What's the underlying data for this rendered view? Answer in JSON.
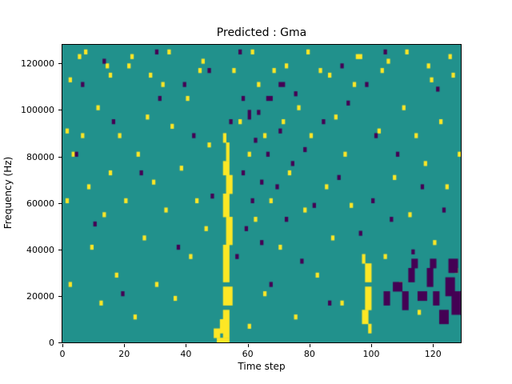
{
  "figure": {
    "title": "Predicted : Gma",
    "xlabel": "Time step",
    "ylabel": "Frequency (Hz)"
  },
  "chart_data": {
    "type": "heatmap",
    "title": "Predicted : Gma",
    "xlabel": "Time step",
    "ylabel": "Frequency (Hz)",
    "xlim": [
      0,
      129
    ],
    "ylim": [
      0,
      128000
    ],
    "x_ticks": [
      0,
      20,
      40,
      60,
      80,
      100,
      120
    ],
    "y_ticks": [
      0,
      20000,
      40000,
      60000,
      80000,
      100000,
      120000
    ],
    "grid": false,
    "legend": "none",
    "colors": {
      "background": "#21918c",
      "high": "#fde725",
      "low": "#440154"
    },
    "cell": {
      "width_steps": 1,
      "height_hz": 2000
    },
    "cells_high": [
      [
        1,
        30
      ],
      [
        1,
        45
      ],
      [
        2,
        12
      ],
      [
        2,
        56
      ],
      [
        3,
        40
      ],
      [
        5,
        61
      ],
      [
        6,
        44
      ],
      [
        7,
        62
      ],
      [
        8,
        33
      ],
      [
        9,
        20
      ],
      [
        11,
        50
      ],
      [
        12,
        8
      ],
      [
        13,
        27
      ],
      [
        14,
        59
      ],
      [
        15,
        36
      ],
      [
        15,
        57
      ],
      [
        17,
        14
      ],
      [
        18,
        44
      ],
      [
        20,
        30
      ],
      [
        21,
        59
      ],
      [
        22,
        61
      ],
      [
        23,
        5
      ],
      [
        24,
        40
      ],
      [
        26,
        22
      ],
      [
        27,
        48
      ],
      [
        28,
        57
      ],
      [
        29,
        34
      ],
      [
        30,
        12
      ],
      [
        32,
        55
      ],
      [
        33,
        28
      ],
      [
        34,
        62
      ],
      [
        35,
        46
      ],
      [
        36,
        9
      ],
      [
        38,
        37
      ],
      [
        40,
        52
      ],
      [
        41,
        18
      ],
      [
        43,
        30
      ],
      [
        44,
        58
      ],
      [
        45,
        60
      ],
      [
        46,
        24
      ],
      [
        47,
        42
      ],
      [
        55,
        58
      ],
      [
        57,
        47
      ],
      [
        60,
        3
      ],
      [
        60,
        40
      ],
      [
        61,
        62
      ],
      [
        62,
        26
      ],
      [
        63,
        55
      ],
      [
        65,
        10
      ],
      [
        65,
        44
      ],
      [
        67,
        30
      ],
      [
        68,
        58
      ],
      [
        70,
        20
      ],
      [
        71,
        47
      ],
      [
        72,
        59
      ],
      [
        73,
        36
      ],
      [
        75,
        5
      ],
      [
        76,
        50
      ],
      [
        78,
        28
      ],
      [
        79,
        62
      ],
      [
        80,
        44
      ],
      [
        82,
        14
      ],
      [
        83,
        58
      ],
      [
        85,
        33
      ],
      [
        86,
        57
      ],
      [
        87,
        22
      ],
      [
        88,
        48
      ],
      [
        90,
        8
      ],
      [
        91,
        40
      ],
      [
        93,
        29
      ],
      [
        94,
        55
      ],
      [
        95,
        61
      ],
      [
        96,
        61
      ],
      [
        102,
        45
      ],
      [
        103,
        58
      ],
      [
        104,
        18
      ],
      [
        105,
        60
      ],
      [
        107,
        35
      ],
      [
        109,
        12
      ],
      [
        110,
        50
      ],
      [
        111,
        62
      ],
      [
        112,
        27
      ],
      [
        114,
        44
      ],
      [
        115,
        6
      ],
      [
        117,
        38
      ],
      [
        118,
        59
      ],
      [
        119,
        56
      ],
      [
        120,
        21
      ],
      [
        122,
        47
      ],
      [
        124,
        33
      ],
      [
        125,
        61
      ],
      [
        126,
        57
      ],
      [
        127,
        15
      ],
      [
        128,
        40
      ],
      [
        49,
        1,
        2,
        2
      ],
      [
        50,
        0,
        4,
        1
      ],
      [
        51,
        2,
        2,
        3
      ],
      [
        52,
        1,
        2,
        6
      ],
      [
        52,
        8,
        3,
        4
      ],
      [
        52,
        13,
        2,
        8
      ],
      [
        53,
        21,
        2,
        6
      ],
      [
        52,
        27,
        2,
        5
      ],
      [
        53,
        32,
        2,
        4
      ],
      [
        52,
        36,
        2,
        3
      ],
      [
        53,
        39,
        1,
        4
      ],
      [
        52,
        43,
        1,
        2
      ],
      [
        97,
        4,
        2,
        3
      ],
      [
        98,
        7,
        2,
        5
      ],
      [
        98,
        13,
        2,
        4
      ],
      [
        97,
        17,
        1,
        2
      ],
      [
        99,
        2,
        1,
        2
      ]
    ],
    "cells_low": [
      [
        4,
        40
      ],
      [
        6,
        55
      ],
      [
        10,
        25
      ],
      [
        13,
        60
      ],
      [
        16,
        47
      ],
      [
        19,
        10
      ],
      [
        25,
        36
      ],
      [
        30,
        62
      ],
      [
        31,
        52
      ],
      [
        37,
        20
      ],
      [
        39,
        55
      ],
      [
        42,
        44
      ],
      [
        47,
        58
      ],
      [
        48,
        31
      ],
      [
        54,
        47
      ],
      [
        56,
        18
      ],
      [
        57,
        62
      ],
      [
        58,
        36
      ],
      [
        58,
        52
      ],
      [
        59,
        24
      ],
      [
        61,
        30
      ],
      [
        62,
        43
      ],
      [
        63,
        49
      ],
      [
        64,
        21
      ],
      [
        64,
        34
      ],
      [
        66,
        40
      ],
      [
        67,
        12
      ],
      [
        69,
        33
      ],
      [
        70,
        45
      ],
      [
        72,
        26
      ],
      [
        74,
        38
      ],
      [
        75,
        53
      ],
      [
        77,
        17
      ],
      [
        78,
        41
      ],
      [
        81,
        29
      ],
      [
        84,
        47
      ],
      [
        86,
        8
      ],
      [
        89,
        35
      ],
      [
        90,
        59
      ],
      [
        92,
        51
      ],
      [
        96,
        23
      ],
      [
        98,
        55
      ],
      [
        100,
        30
      ],
      [
        101,
        44
      ],
      [
        104,
        62
      ],
      [
        106,
        26
      ],
      [
        108,
        40
      ],
      [
        113,
        19
      ],
      [
        116,
        33
      ],
      [
        121,
        54
      ],
      [
        123,
        28
      ],
      [
        104,
        8,
        2,
        3
      ],
      [
        107,
        11,
        3,
        2
      ],
      [
        110,
        7,
        2,
        4
      ],
      [
        112,
        13,
        2,
        3
      ],
      [
        115,
        9,
        3,
        2
      ],
      [
        118,
        12,
        2,
        4
      ],
      [
        120,
        8,
        2,
        3
      ],
      [
        122,
        4,
        3,
        3
      ],
      [
        124,
        10,
        3,
        4
      ],
      [
        126,
        6,
        3,
        5
      ],
      [
        125,
        15,
        3,
        3
      ],
      [
        119,
        16,
        2,
        2
      ],
      [
        113,
        16,
        2,
        2
      ],
      [
        60,
        48,
        1,
        2
      ],
      [
        66,
        52,
        2,
        1
      ],
      [
        70,
        55,
        2,
        1
      ]
    ]
  }
}
